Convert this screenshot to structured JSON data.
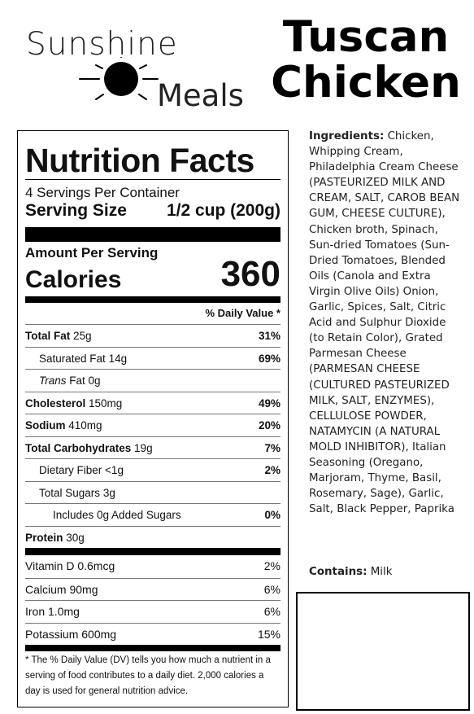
{
  "brand": {
    "line1": "Sunshine",
    "line2": "Meals"
  },
  "product_title": {
    "line1": "Tuscan",
    "line2": "Chicken"
  },
  "nutrition": {
    "heading": "Nutrition Facts",
    "servings_per_container": "4 Servings Per Container",
    "serving_size_label": "Serving Size",
    "serving_size_value": "1/2 cup (200g)",
    "amount_per_serving": "Amount Per Serving",
    "calories_label": "Calories",
    "calories_value": "360",
    "dv_header": "% Daily Value *",
    "rows": [
      {
        "name": "Total Fat",
        "amount": "25g",
        "dv": "31%"
      },
      {
        "name": "Saturated Fat",
        "amount": "14g",
        "dv": "69%"
      },
      {
        "name_italic": "Trans",
        "name_rest": " Fat",
        "amount": "0g",
        "dv": ""
      },
      {
        "name": "Cholesterol",
        "amount": "150mg",
        "dv": "49%"
      },
      {
        "name": "Sodium",
        "amount": "410mg",
        "dv": "20%"
      },
      {
        "name": "Total Carbohydrates",
        "amount": "19g",
        "dv": "7%"
      },
      {
        "name": "Dietary Fiber",
        "amount": "<1g",
        "dv": "2%"
      },
      {
        "name": "Total Sugars",
        "amount": "3g",
        "dv": ""
      },
      {
        "name": "Includes 0g Added Sugars",
        "amount": "",
        "dv": "0%"
      },
      {
        "name": "Protein",
        "amount": "30g",
        "dv": ""
      }
    ],
    "vitamins": [
      {
        "label": "Vitamin D 0.6mcg",
        "dv": "2%"
      },
      {
        "label": "Calcium 90mg",
        "dv": "6%"
      },
      {
        "label": "Iron 1.0mg",
        "dv": "6%"
      },
      {
        "label": "Potassium 600mg",
        "dv": "15%"
      }
    ],
    "footnote": "* The % Daily Value (DV) tells you how much a nutrient in a serving of food contributes to a daily diet. 2,000 calories a day is used for general nutrition advice."
  },
  "ingredients": {
    "label": "Ingredients:",
    "text": "Chicken, Whipping Cream, Philadelphia Cream Cheese (PASTEURIZED MILK AND CREAM, SALT, CAROB BEAN GUM, CHEESE CULTURE), Chicken broth, Spinach, Sun-dried Tomatoes (Sun-Dried Tomatoes, Blended Oils (Canola and Extra Virgin Olive Oils) Onion, Garlic, Spices, Salt, Citric Acid and Sulphur Dioxide (to Retain Color), Grated Parmesan Cheese (PARMESAN CHEESE (CULTURED PASTEURIZED MILK, SALT, ENZYMES), CELLULOSE POWDER, NATAMYCIN (A NATURAL MOLD INHIBITOR), Italian Seasoning (Oregano, Marjoram, Thyme, Basil, Rosemary, Sage), Garlic, Salt, Black Pepper, Paprika"
  },
  "contains": {
    "label": "Contains:",
    "value": "Milk"
  }
}
